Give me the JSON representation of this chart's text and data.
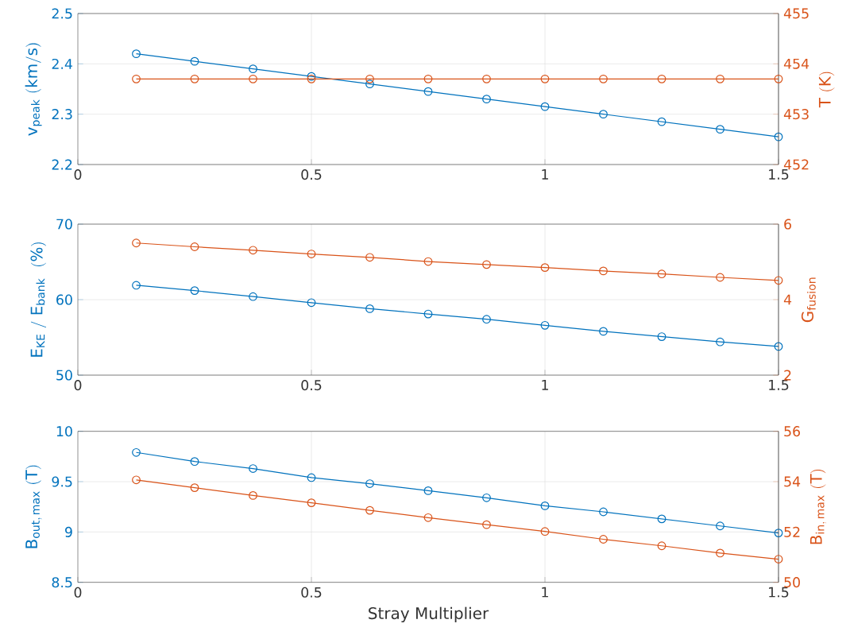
{
  "chart_data": [
    {
      "type": "line",
      "x": [
        0.125,
        0.25,
        0.375,
        0.5,
        0.625,
        0.75,
        0.875,
        1,
        1.125,
        1.25,
        1.375,
        1.5
      ],
      "ylabel": "\\mathrm{v_{peak}\\ (km/s)}",
      "y2label": "\\mathrm{T\\ (K)}",
      "xlim": [
        0,
        1.5
      ],
      "xticks": [
        0,
        0.5,
        1,
        1.5
      ],
      "ylim": [
        2.2,
        2.5
      ],
      "yticks": [
        2.2,
        2.3,
        2.4,
        2.5
      ],
      "y2lim": [
        452,
        455
      ],
      "y2ticks": [
        452,
        453,
        454,
        455
      ],
      "grid": true,
      "marker": "circle",
      "series": [
        {
          "color": "#0072bd",
          "values": [
            2.42,
            2.405,
            2.39,
            2.375,
            2.36,
            2.345,
            2.33,
            2.315,
            2.3,
            2.285,
            2.27,
            2.255
          ]
        },
        {
          "color": "#d95319",
          "axis": "y2",
          "values": [
            453.7,
            453.7,
            453.7,
            453.7,
            453.7,
            453.7,
            453.7,
            453.7,
            453.7,
            453.7,
            453.7,
            453.7
          ]
        }
      ]
    },
    {
      "type": "line",
      "x": [
        0.125,
        0.25,
        0.375,
        0.5,
        0.625,
        0.75,
        0.875,
        1,
        1.125,
        1.25,
        1.375,
        1.5
      ],
      "ylabel": "\\mathrm{E_{KE}\\ /\\ E_{bank}\\ \\ (\\%)}",
      "y2label": "\\mathrm{G_{fusion}}",
      "xlim": [
        0,
        1.5
      ],
      "xticks": [
        0,
        0.5,
        1,
        1.5
      ],
      "ylim": [
        50,
        70
      ],
      "yticks": [
        50,
        60,
        70
      ],
      "y2lim": [
        2,
        6
      ],
      "y2ticks": [
        2,
        4,
        6
      ],
      "grid": true,
      "marker": "circle",
      "series": [
        {
          "color": "#0072bd",
          "values": [
            61.9,
            61.2,
            60.4,
            59.6,
            58.8,
            58.1,
            57.4,
            56.6,
            55.8,
            55.1,
            54.4,
            53.8
          ]
        },
        {
          "color": "#d95319",
          "axis": "y2",
          "values": [
            5.5,
            5.4,
            5.31,
            5.21,
            5.12,
            5.01,
            4.93,
            4.85,
            4.76,
            4.68,
            4.59,
            4.51
          ]
        }
      ]
    },
    {
      "type": "line",
      "x": [
        0.125,
        0.25,
        0.375,
        0.5,
        0.625,
        0.75,
        0.875,
        1,
        1.125,
        1.25,
        1.375,
        1.5
      ],
      "xlabel": "Stray Multiplier",
      "ylabel": "\\mathrm{B_{out,\\,max}\\ (T)}",
      "y2label": "\\mathrm{B_{in,\\,max}\\ (T)}",
      "xlim": [
        0,
        1.5
      ],
      "xticks": [
        0,
        0.5,
        1,
        1.5
      ],
      "ylim": [
        8.5,
        10
      ],
      "yticks": [
        8.5,
        9,
        9.5,
        10
      ],
      "y2lim": [
        50,
        56
      ],
      "y2ticks": [
        50,
        52,
        54,
        56
      ],
      "grid": true,
      "marker": "circle",
      "series": [
        {
          "color": "#0072bd",
          "values": [
            9.79,
            9.7,
            9.63,
            9.54,
            9.48,
            9.41,
            9.34,
            9.26,
            9.2,
            9.13,
            9.06,
            8.99
          ]
        },
        {
          "color": "#d95319",
          "axis": "y2",
          "values": [
            54.07,
            53.76,
            53.45,
            53.16,
            52.86,
            52.57,
            52.29,
            52.02,
            51.71,
            51.45,
            51.16,
            50.92
          ]
        }
      ]
    }
  ]
}
